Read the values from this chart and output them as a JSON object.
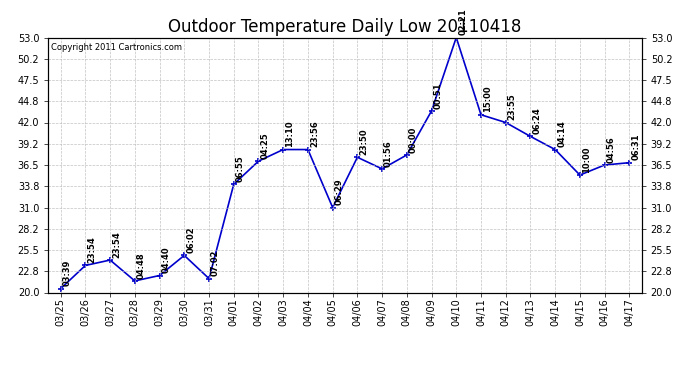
{
  "title": "Outdoor Temperature Daily Low 20110418",
  "copyright": "Copyright 2011 Cartronics.com",
  "line_color": "#0000cc",
  "bg_color": "#ffffff",
  "grid_color": "#bbbbbb",
  "dates": [
    "03/25",
    "03/26",
    "03/27",
    "03/28",
    "03/29",
    "03/30",
    "03/31",
    "04/01",
    "04/02",
    "04/03",
    "04/04",
    "04/05",
    "04/06",
    "04/07",
    "04/08",
    "04/09",
    "04/10",
    "04/11",
    "04/12",
    "04/13",
    "04/14",
    "04/15",
    "04/16",
    "04/17"
  ],
  "values": [
    20.5,
    23.5,
    24.2,
    21.5,
    22.2,
    24.8,
    21.8,
    34.0,
    37.0,
    38.5,
    38.5,
    31.0,
    37.5,
    36.0,
    37.8,
    43.5,
    53.0,
    43.0,
    42.0,
    40.2,
    38.5,
    35.2,
    36.5,
    36.8
  ],
  "time_labels": [
    "03:39",
    "23:54",
    "23:54",
    "04:48",
    "04:40",
    "06:02",
    "07:02",
    "06:55",
    "04:25",
    "13:10",
    "23:56",
    "06:29",
    "23:50",
    "01:56",
    "00:00",
    "00:51",
    "02:21",
    "15:00",
    "23:55",
    "06:24",
    "04:14",
    "10:00",
    "04:56",
    "06:31"
  ],
  "ylim": [
    20.0,
    53.0
  ],
  "yticks": [
    20.0,
    22.8,
    25.5,
    28.2,
    31.0,
    33.8,
    36.5,
    39.2,
    42.0,
    44.8,
    47.5,
    50.2,
    53.0
  ],
  "title_fontsize": 12,
  "label_fontsize": 6,
  "tick_fontsize": 7,
  "copyright_fontsize": 6
}
